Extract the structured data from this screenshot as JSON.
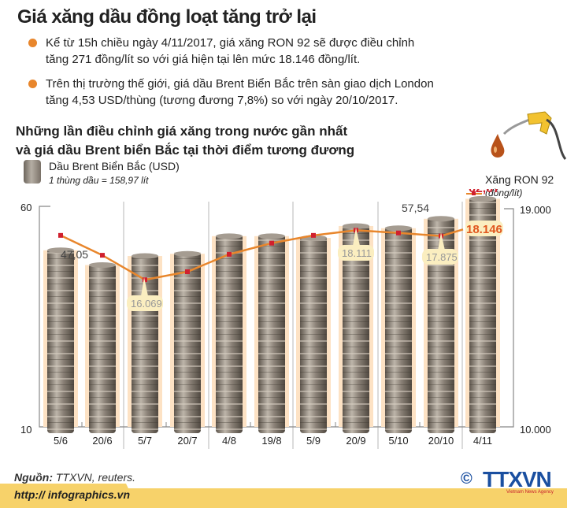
{
  "header": {
    "title": "Giá xăng dầu đồng loạt tăng trở lại",
    "bullets": [
      {
        "line1": "Kể từ 15h chiều ngày 4/11/2017, giá xăng RON 92 sẽ được điều chỉnh",
        "line2": "tăng 271 đồng/lít so với giá hiện tại lên mức 18.146 đồng/lít."
      },
      {
        "line1": "Trên thị trường thế giới, giá dầu Brent Biển Bắc trên sàn giao dịch London",
        "line2": "tăng 4,53 USD/thùng (tương đương 7,8%) so với ngày 20/10/2017."
      }
    ]
  },
  "chart_section": {
    "subtitle_line1": "Những lần điều chỉnh giá xăng trong nước gần nhất",
    "subtitle_line2": "và giá dầu Brent biển Bắc tại thời điểm tương đương",
    "legend_brent_label": "Dầu Brent Biển Bắc (USD)",
    "legend_brent_note": "1 thùng dầu = 158,97 lít",
    "legend_ron_label": "Xăng RON 92",
    "legend_ron_unit": "(đồng/lít)"
  },
  "chart_data": {
    "type": "bar+line",
    "title": "Những lần điều chỉnh giá xăng trong nước gần nhất và giá dầu Brent biển Bắc tại thời điểm tương đương",
    "categories": [
      "5/6",
      "20/6",
      "5/7",
      "20/7",
      "4/8",
      "19/8",
      "5/9",
      "20/9",
      "5/10",
      "20/10",
      "4/11"
    ],
    "series": [
      {
        "name": "Dầu Brent Biển Bắc (USD)",
        "type": "bar",
        "axis": "left",
        "values": [
          50.4,
          47.05,
          49.1,
          49.6,
          53.6,
          53.6,
          53.2,
          55.9,
          55.4,
          57.54,
          62.07
        ]
      },
      {
        "name": "Xăng RON 92 (đồng/lít)",
        "type": "line",
        "axis": "right",
        "values": [
          17900,
          17080,
          16069,
          16400,
          17120,
          17580,
          17900,
          18111,
          18000,
          17875,
          18146
        ]
      }
    ],
    "labeled_points": {
      "bar": [
        {
          "x": "20/6",
          "label": "47,05"
        },
        {
          "x": "20/10",
          "label": "57,54"
        },
        {
          "x": "4/11",
          "label": "62,07"
        }
      ],
      "line": [
        {
          "x": "5/7",
          "label": "16.069"
        },
        {
          "x": "20/9",
          "label": "18.111"
        },
        {
          "x": "20/10",
          "label": "17.875"
        },
        {
          "x": "4/11",
          "label": "18.146"
        }
      ]
    },
    "left_axis": {
      "ticks": [
        "60",
        "10"
      ],
      "ylim": [
        10,
        60
      ]
    },
    "right_axis": {
      "ticks": [
        "19.000",
        "10.000"
      ],
      "ylim": [
        10000,
        19000
      ]
    },
    "colors": {
      "line": "#e8862c",
      "marker": "#d0202e",
      "highlight_label": "#d0202e",
      "bar_glow": "#fde2c4"
    }
  },
  "footer": {
    "source_label": "Nguồn:",
    "source_text": " TTXVN, reuters.",
    "url": "http:// infographics.vn",
    "logo_copyright": "©",
    "logo_text": "TTXVN",
    "logo_subtext": "Vietnam News Agency"
  }
}
